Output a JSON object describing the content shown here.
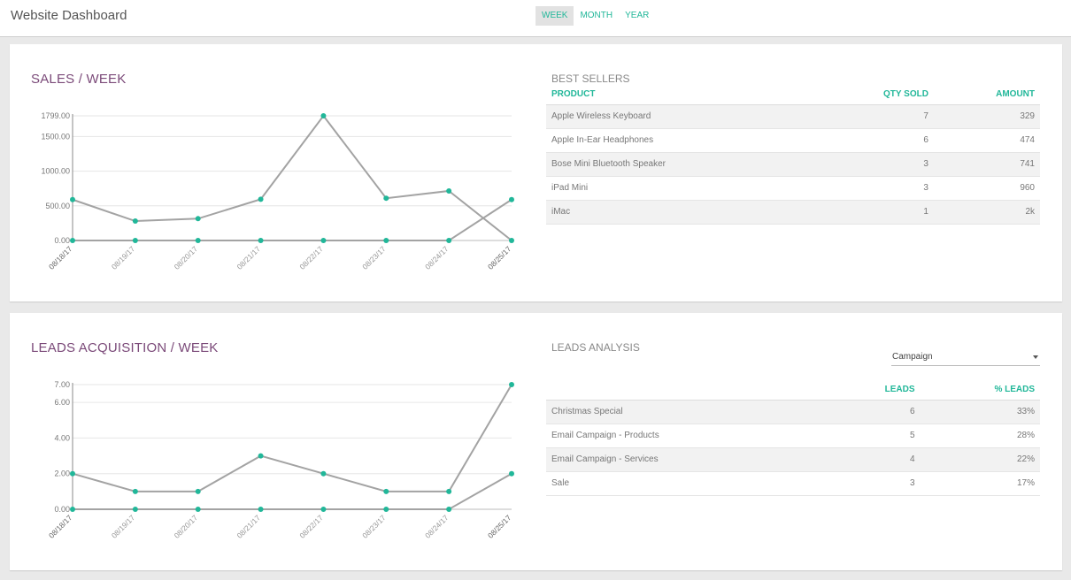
{
  "header": {
    "title": "Website Dashboard",
    "periods": [
      "WEEK",
      "MONTH",
      "YEAR"
    ],
    "active_period": "WEEK"
  },
  "colors": {
    "accent": "#21b799",
    "title": "#7b4a79",
    "line": "#a3a3a3"
  },
  "sales": {
    "title": "SALES / WEEK",
    "chart_data": {
      "type": "line",
      "categories": [
        "08/18/17",
        "08/19/17",
        "08/20/17",
        "08/21/17",
        "08/22/17",
        "08/23/17",
        "08/24/17",
        "08/25/17"
      ],
      "series": [
        {
          "values": [
            590,
            280,
            315,
            595,
            1799,
            610,
            715,
            0
          ]
        },
        {
          "values": [
            0,
            0,
            0,
            0,
            0,
            0,
            0,
            590
          ]
        }
      ],
      "yticks": [
        0,
        500,
        1000,
        1500,
        1799
      ],
      "ytick_labels": [
        "0.00",
        "500.00",
        "1000.00",
        "1500.00",
        "1799.00"
      ],
      "ylim": [
        0,
        1799
      ]
    }
  },
  "best_sellers": {
    "title": "BEST SELLERS",
    "columns": [
      "PRODUCT",
      "QTY SOLD",
      "AMOUNT"
    ],
    "rows": [
      [
        "Apple Wireless Keyboard",
        "7",
        "329"
      ],
      [
        "Apple In-Ear Headphones",
        "6",
        "474"
      ],
      [
        "Bose Mini Bluetooth Speaker",
        "3",
        "741"
      ],
      [
        "iPad Mini",
        "3",
        "960"
      ],
      [
        "iMac",
        "1",
        "2k"
      ]
    ]
  },
  "leads": {
    "title": "LEADS ACQUISITION / WEEK",
    "chart_data": {
      "type": "line",
      "categories": [
        "08/18/17",
        "08/19/17",
        "08/20/17",
        "08/21/17",
        "08/22/17",
        "08/23/17",
        "08/24/17",
        "08/25/17"
      ],
      "series": [
        {
          "values": [
            2,
            1,
            1,
            3,
            2,
            1,
            1,
            7
          ]
        },
        {
          "values": [
            0,
            0,
            0,
            0,
            0,
            0,
            0,
            2
          ]
        }
      ],
      "yticks": [
        0,
        2,
        4,
        6,
        7
      ],
      "ytick_labels": [
        "0.00",
        "2.00",
        "4.00",
        "6.00",
        "7.00"
      ],
      "ylim": [
        0,
        7
      ]
    }
  },
  "leads_analysis": {
    "title": "LEADS ANALYSIS",
    "group_by": "Campaign",
    "columns": [
      "",
      "LEADS",
      "% LEADS"
    ],
    "rows": [
      [
        "Christmas Special",
        "6",
        "33%"
      ],
      [
        "Email Campaign - Products",
        "5",
        "28%"
      ],
      [
        "Email Campaign - Services",
        "4",
        "22%"
      ],
      [
        "Sale",
        "3",
        "17%"
      ]
    ]
  }
}
